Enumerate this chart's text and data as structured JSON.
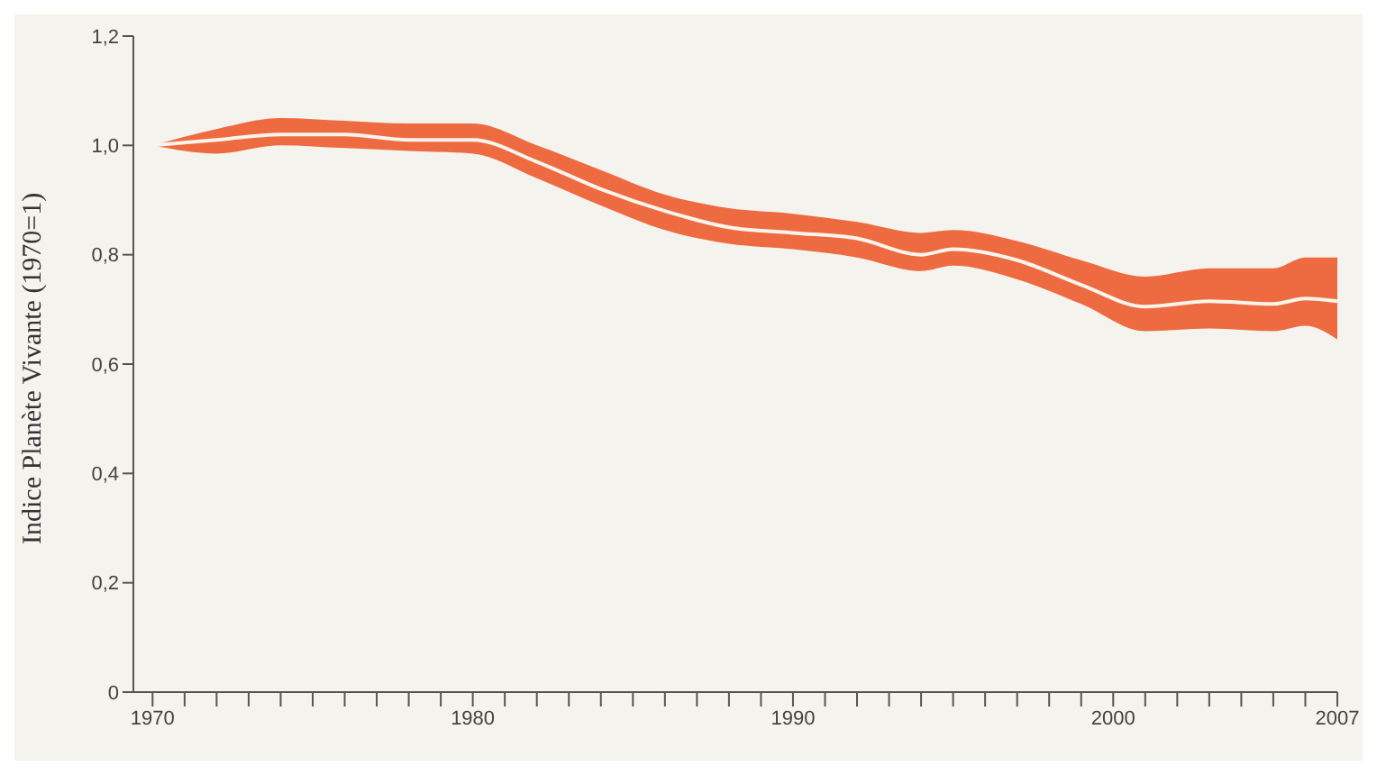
{
  "chart_data": {
    "type": "line",
    "ylabel": "Indice Planète Vivante (1970=1)",
    "x": [
      1970,
      1972,
      1974,
      1976,
      1978,
      1980,
      1982,
      1984,
      1986,
      1988,
      1990,
      1992,
      1994,
      1995,
      1997,
      1999,
      2001,
      2003,
      2005,
      2006,
      2007
    ],
    "series": [
      {
        "color": "#fbf4ec",
        "values": [
          1.0,
          1.01,
          1.02,
          1.02,
          1.01,
          1.01,
          0.97,
          0.92,
          0.88,
          0.85,
          0.84,
          0.83,
          0.8,
          0.81,
          0.79,
          0.745,
          0.705,
          0.715,
          0.71,
          0.72,
          0.715
        ],
        "lower": [
          1.0,
          0.985,
          1.0,
          0.995,
          0.99,
          0.985,
          0.94,
          0.89,
          0.845,
          0.82,
          0.81,
          0.795,
          0.77,
          0.78,
          0.755,
          0.71,
          0.66,
          0.665,
          0.66,
          0.67,
          0.645
        ],
        "upper": [
          1.0,
          1.03,
          1.05,
          1.045,
          1.04,
          1.04,
          1.0,
          0.955,
          0.91,
          0.885,
          0.875,
          0.86,
          0.84,
          0.845,
          0.825,
          0.79,
          0.76,
          0.775,
          0.775,
          0.795,
          0.795
        ]
      }
    ],
    "xlim": [
      1969.4,
      2007
    ],
    "xticks": [
      1970,
      {
        "value": 1971,
        "label": null
      },
      {
        "value": 1972,
        "label": null
      },
      {
        "value": 1973,
        "label": null
      },
      {
        "value": 1974,
        "label": null
      },
      {
        "value": 1975,
        "label": null
      },
      {
        "value": 1976,
        "label": null
      },
      {
        "value": 1977,
        "label": null
      },
      {
        "value": 1978,
        "label": null
      },
      {
        "value": 1979,
        "label": null
      },
      1980,
      {
        "value": 1981,
        "label": null
      },
      {
        "value": 1982,
        "label": null
      },
      {
        "value": 1983,
        "label": null
      },
      {
        "value": 1984,
        "label": null
      },
      {
        "value": 1985,
        "label": null
      },
      {
        "value": 1986,
        "label": null
      },
      {
        "value": 1987,
        "label": null
      },
      {
        "value": 1988,
        "label": null
      },
      {
        "value": 1989,
        "label": null
      },
      1990,
      {
        "value": 1991,
        "label": null
      },
      {
        "value": 1992,
        "label": null
      },
      {
        "value": 1993,
        "label": null
      },
      {
        "value": 1994,
        "label": null
      },
      {
        "value": 1995,
        "label": null
      },
      {
        "value": 1996,
        "label": null
      },
      {
        "value": 1997,
        "label": null
      },
      {
        "value": 1998,
        "label": null
      },
      {
        "value": 1999,
        "label": null
      },
      2000,
      {
        "value": 2001,
        "label": null
      },
      {
        "value": 2002,
        "label": null
      },
      {
        "value": 2003,
        "label": null
      },
      {
        "value": 2004,
        "label": null
      },
      {
        "value": 2005,
        "label": null
      },
      {
        "value": 2006,
        "label": null
      },
      2007
    ],
    "ylim": [
      0,
      1.2
    ],
    "yticks": [
      0,
      {
        "value": 0.2,
        "label": "0,2"
      },
      {
        "value": 0.4,
        "label": "0,4"
      },
      {
        "value": 0.6,
        "label": "0,6"
      },
      {
        "value": 0.8,
        "label": "0,8"
      },
      {
        "value": 1.0,
        "label": "1,0"
      },
      {
        "value": 1.2,
        "label": "1,2"
      }
    ],
    "grid": false,
    "legend": false,
    "marker": "none",
    "line_style": "solid"
  }
}
